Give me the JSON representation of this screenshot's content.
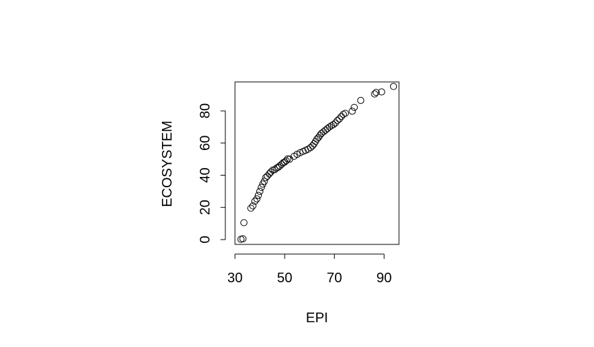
{
  "chart_data": {
    "type": "scatter",
    "title": "",
    "xlabel": "EPI",
    "ylabel": "ECOSYSTEM",
    "xlim": [
      30,
      96
    ],
    "ylim": [
      -3,
      98
    ],
    "xticks": [
      30,
      50,
      70,
      90
    ],
    "yticks": [
      0,
      20,
      40,
      60,
      80
    ],
    "grid": false,
    "marker": "open-circle",
    "series": [
      {
        "points": [
          [
            32.4,
            0.2
          ],
          [
            33.2,
            0.5
          ],
          [
            33.6,
            10.5
          ],
          [
            36.4,
            19.5
          ],
          [
            37.2,
            21.0
          ],
          [
            38.0,
            23.8
          ],
          [
            38.8,
            25.3
          ],
          [
            39.4,
            27.5
          ],
          [
            40.0,
            30.0
          ],
          [
            40.6,
            32.5
          ],
          [
            41.2,
            34.5
          ],
          [
            41.8,
            36.2
          ],
          [
            42.4,
            38.5
          ],
          [
            43.0,
            39.5
          ],
          [
            43.8,
            40.8
          ],
          [
            44.4,
            42.0
          ],
          [
            45.2,
            43.2
          ],
          [
            46.0,
            43.5
          ],
          [
            46.8,
            44.5
          ],
          [
            47.4,
            45.0
          ],
          [
            48.0,
            45.8
          ],
          [
            48.8,
            46.8
          ],
          [
            49.4,
            47.8
          ],
          [
            50.0,
            48.2
          ],
          [
            50.6,
            49.0
          ],
          [
            51.2,
            50.2
          ],
          [
            52.0,
            50.0
          ],
          [
            53.8,
            51.8
          ],
          [
            55.0,
            53.0
          ],
          [
            56.2,
            54.0
          ],
          [
            57.4,
            54.8
          ],
          [
            58.4,
            55.5
          ],
          [
            59.4,
            56.2
          ],
          [
            60.4,
            57.2
          ],
          [
            61.2,
            58.3
          ],
          [
            61.8,
            59.5
          ],
          [
            62.4,
            61.0
          ],
          [
            63.0,
            62.5
          ],
          [
            63.6,
            63.5
          ],
          [
            64.2,
            64.8
          ],
          [
            64.8,
            66.0
          ],
          [
            65.6,
            67.0
          ],
          [
            66.4,
            68.0
          ],
          [
            67.2,
            69.0
          ],
          [
            68.0,
            70.0
          ],
          [
            68.8,
            70.8
          ],
          [
            69.6,
            71.5
          ],
          [
            70.4,
            72.5
          ],
          [
            71.2,
            74.0
          ],
          [
            72.0,
            75.0
          ],
          [
            72.8,
            76.5
          ],
          [
            73.6,
            77.8
          ],
          [
            74.4,
            78.5
          ],
          [
            77.2,
            79.8
          ],
          [
            78.0,
            82.2
          ],
          [
            80.6,
            86.5
          ],
          [
            86.2,
            90.5
          ],
          [
            86.8,
            91.5
          ],
          [
            89.0,
            91.8
          ],
          [
            93.8,
            95.2
          ]
        ]
      }
    ]
  }
}
